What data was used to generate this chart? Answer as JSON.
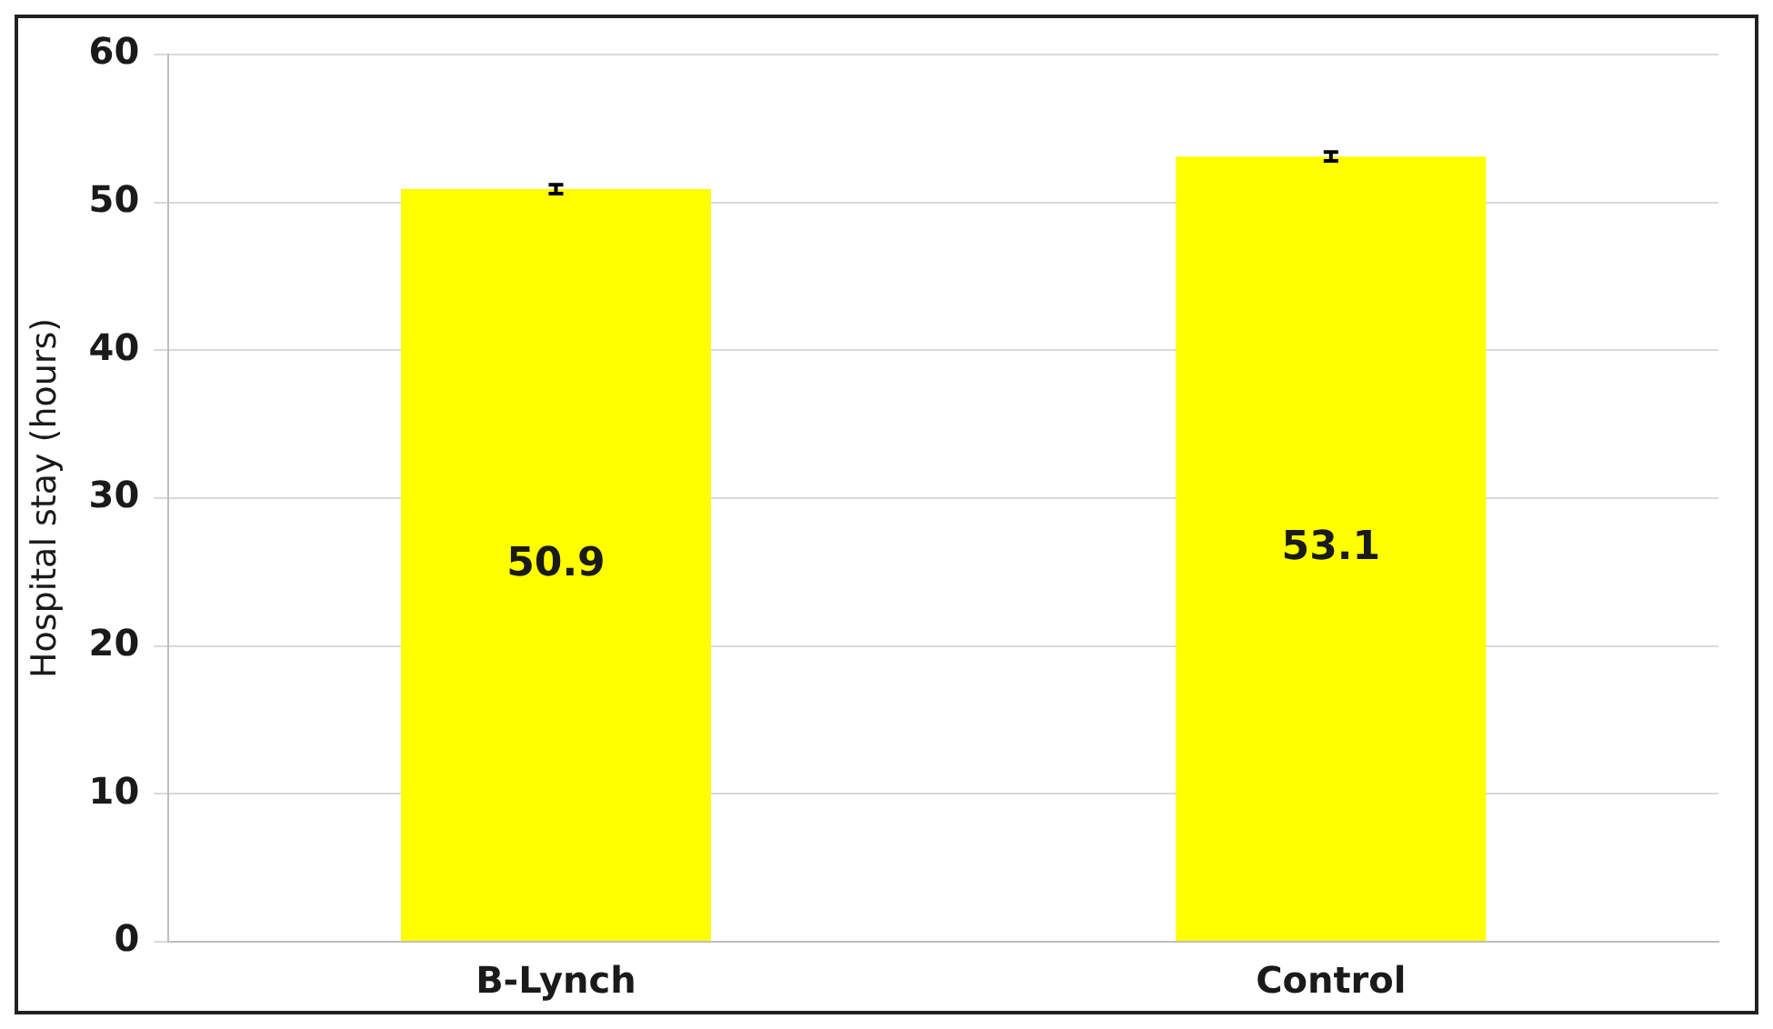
{
  "chart_data": {
    "type": "bar",
    "ylabel": "Hospital stay (hours)",
    "categories": [
      "B-Lynch",
      "Control"
    ],
    "values": [
      50.9,
      53.1
    ],
    "errors": [
      0.3,
      0.3
    ],
    "color": "#ffff00",
    "ylim": [
      0,
      60
    ],
    "yticks": [
      0,
      10,
      20,
      30,
      40,
      50,
      60
    ],
    "grid": "y",
    "legend": false,
    "data_labels": true
  }
}
